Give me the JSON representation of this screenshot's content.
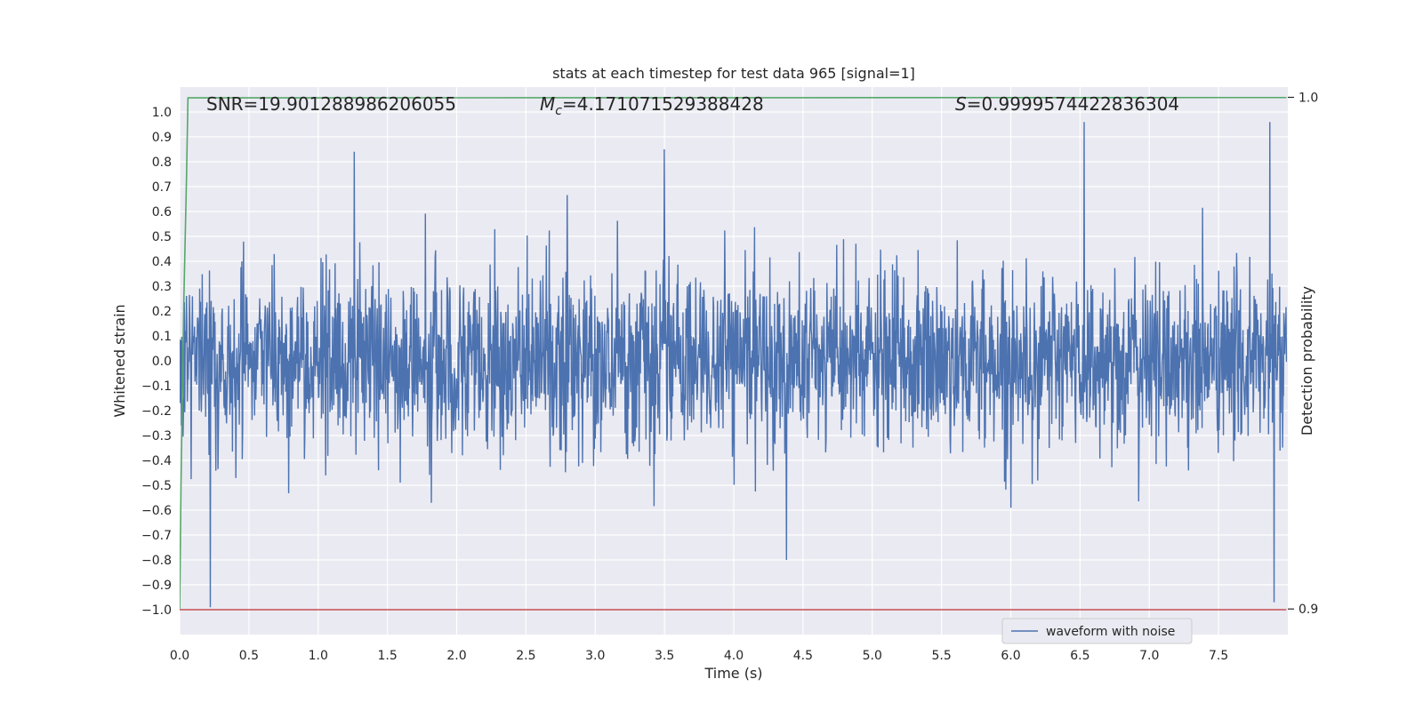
{
  "chart_data": {
    "type": "line",
    "title": "stats at each timestep for test data 965 [signal=1]",
    "xlabel": "Time (s)",
    "ylabel": "Whitened strain",
    "y2label": "Detection probability",
    "xlim": [
      0.0,
      8.0
    ],
    "ylim": [
      -1.1,
      1.1
    ],
    "y2lim": [
      0.895,
      1.002
    ],
    "x_ticks": [
      "0.0",
      "0.5",
      "1.0",
      "1.5",
      "2.0",
      "2.5",
      "3.0",
      "3.5",
      "4.0",
      "4.5",
      "5.0",
      "5.5",
      "6.0",
      "6.5",
      "7.0",
      "7.5"
    ],
    "y_ticks": [
      "1.0",
      "0.9",
      "0.8",
      "0.7",
      "0.6",
      "0.5",
      "0.4",
      "0.3",
      "0.2",
      "0.1",
      "0.0",
      "-0.1",
      "-0.2",
      "-0.3",
      "-0.4",
      "-0.5",
      "-0.6",
      "-0.7",
      "-0.8",
      "-0.9",
      "-1.0"
    ],
    "y2_ticks": [
      "1.0",
      "0.9"
    ],
    "grid": true,
    "legend_position": "lower-right",
    "annotations": {
      "snr": "SNR=19.901288986206055",
      "mc_symbol": "M",
      "mc_sub": "c",
      "mc_value": "=4.171071529388428",
      "s_symbol": "S",
      "s_value": "=0.9999574422836304"
    },
    "series": [
      {
        "name": "waveform with noise",
        "color": "#4c72b0",
        "axis": "left",
        "x_range": [
          0.0,
          7.99
        ],
        "amplitude_typical": 0.35,
        "peak_values": [
          {
            "x": 0.22,
            "y": -1.0
          },
          {
            "x": 1.26,
            "y": 0.84
          },
          {
            "x": 3.5,
            "y": 0.85
          },
          {
            "x": 4.38,
            "y": -0.8
          },
          {
            "x": 6.53,
            "y": 0.96
          },
          {
            "x": 7.87,
            "y": 0.96
          },
          {
            "x": 7.9,
            "y": -0.97
          }
        ]
      },
      {
        "color": "#55a868",
        "axis": "right",
        "x": [
          0.0,
          0.01,
          0.03,
          0.05,
          0.06,
          7.99
        ],
        "y": [
          0.9,
          0.925,
          0.96,
          0.985,
          0.9999,
          0.99996
        ]
      },
      {
        "color": "#c44e52",
        "axis": "left",
        "x": [
          0.0,
          7.99
        ],
        "y": [
          -1.0,
          -1.0
        ]
      }
    ]
  }
}
